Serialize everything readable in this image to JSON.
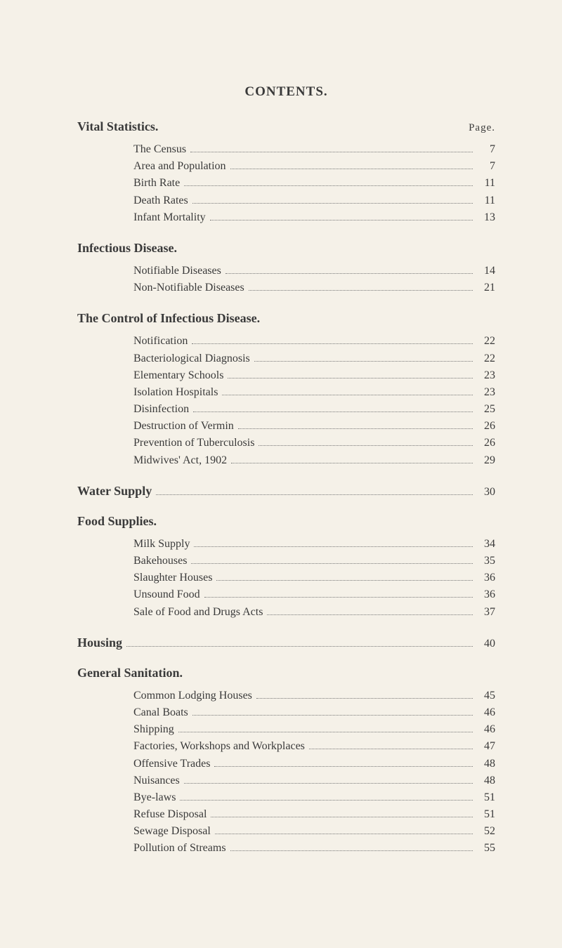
{
  "title": "CONTENTS.",
  "page_label": "Page.",
  "sections": [
    {
      "heading": "Vital Statistics.",
      "show_page_label": true,
      "heading_inline": false,
      "entries": [
        {
          "label": "The Census",
          "page": "7"
        },
        {
          "label": "Area and Population",
          "page": "7"
        },
        {
          "label": "Birth Rate",
          "page": "11"
        },
        {
          "label": "Death Rates",
          "page": "11"
        },
        {
          "label": "Infant Mortality",
          "page": "13"
        }
      ]
    },
    {
      "heading": "Infectious Disease.",
      "show_page_label": false,
      "heading_inline": false,
      "entries": [
        {
          "label": "Notifiable Diseases",
          "page": "14"
        },
        {
          "label": "Non-Notifiable Diseases",
          "page": "21"
        }
      ]
    },
    {
      "heading": "The Control of Infectious Disease.",
      "show_page_label": false,
      "heading_inline": false,
      "entries": [
        {
          "label": "Notification",
          "page": "22"
        },
        {
          "label": "Bacteriological Diagnosis",
          "page": "22"
        },
        {
          "label": "Elementary Schools",
          "page": "23"
        },
        {
          "label": "Isolation Hospitals",
          "page": "23"
        },
        {
          "label": "Disinfection",
          "page": "25"
        },
        {
          "label": "Destruction of Vermin",
          "page": "26"
        },
        {
          "label": "Prevention of Tuberculosis",
          "page": "26"
        },
        {
          "label": "Midwives' Act, 1902",
          "page": "29"
        }
      ]
    },
    {
      "heading": "Water Supply",
      "show_page_label": false,
      "heading_inline": true,
      "inline_page": "30",
      "entries": []
    },
    {
      "heading": "Food Supplies.",
      "show_page_label": false,
      "heading_inline": false,
      "entries": [
        {
          "label": "Milk Supply",
          "page": "34"
        },
        {
          "label": "Bakehouses",
          "page": "35"
        },
        {
          "label": "Slaughter Houses",
          "page": "36"
        },
        {
          "label": "Unsound Food",
          "page": "36"
        },
        {
          "label": "Sale of Food and Drugs Acts",
          "page": "37"
        }
      ]
    },
    {
      "heading": "Housing",
      "show_page_label": false,
      "heading_inline": true,
      "inline_page": "40",
      "entries": []
    },
    {
      "heading": "General Sanitation.",
      "show_page_label": false,
      "heading_inline": false,
      "entries": [
        {
          "label": "Common Lodging Houses",
          "page": "45"
        },
        {
          "label": "Canal Boats",
          "page": "46"
        },
        {
          "label": "Shipping",
          "page": "46"
        },
        {
          "label": "Factories, Workshops and Workplaces",
          "page": "47"
        },
        {
          "label": "Offensive Trades",
          "page": "48"
        },
        {
          "label": "Nuisances",
          "page": "48"
        },
        {
          "label": "Bye-laws",
          "page": "51"
        },
        {
          "label": "Refuse Disposal",
          "page": "51"
        },
        {
          "label": "Sewage Disposal",
          "page": "52"
        },
        {
          "label": "Pollution of Streams",
          "page": "55"
        }
      ]
    }
  ]
}
